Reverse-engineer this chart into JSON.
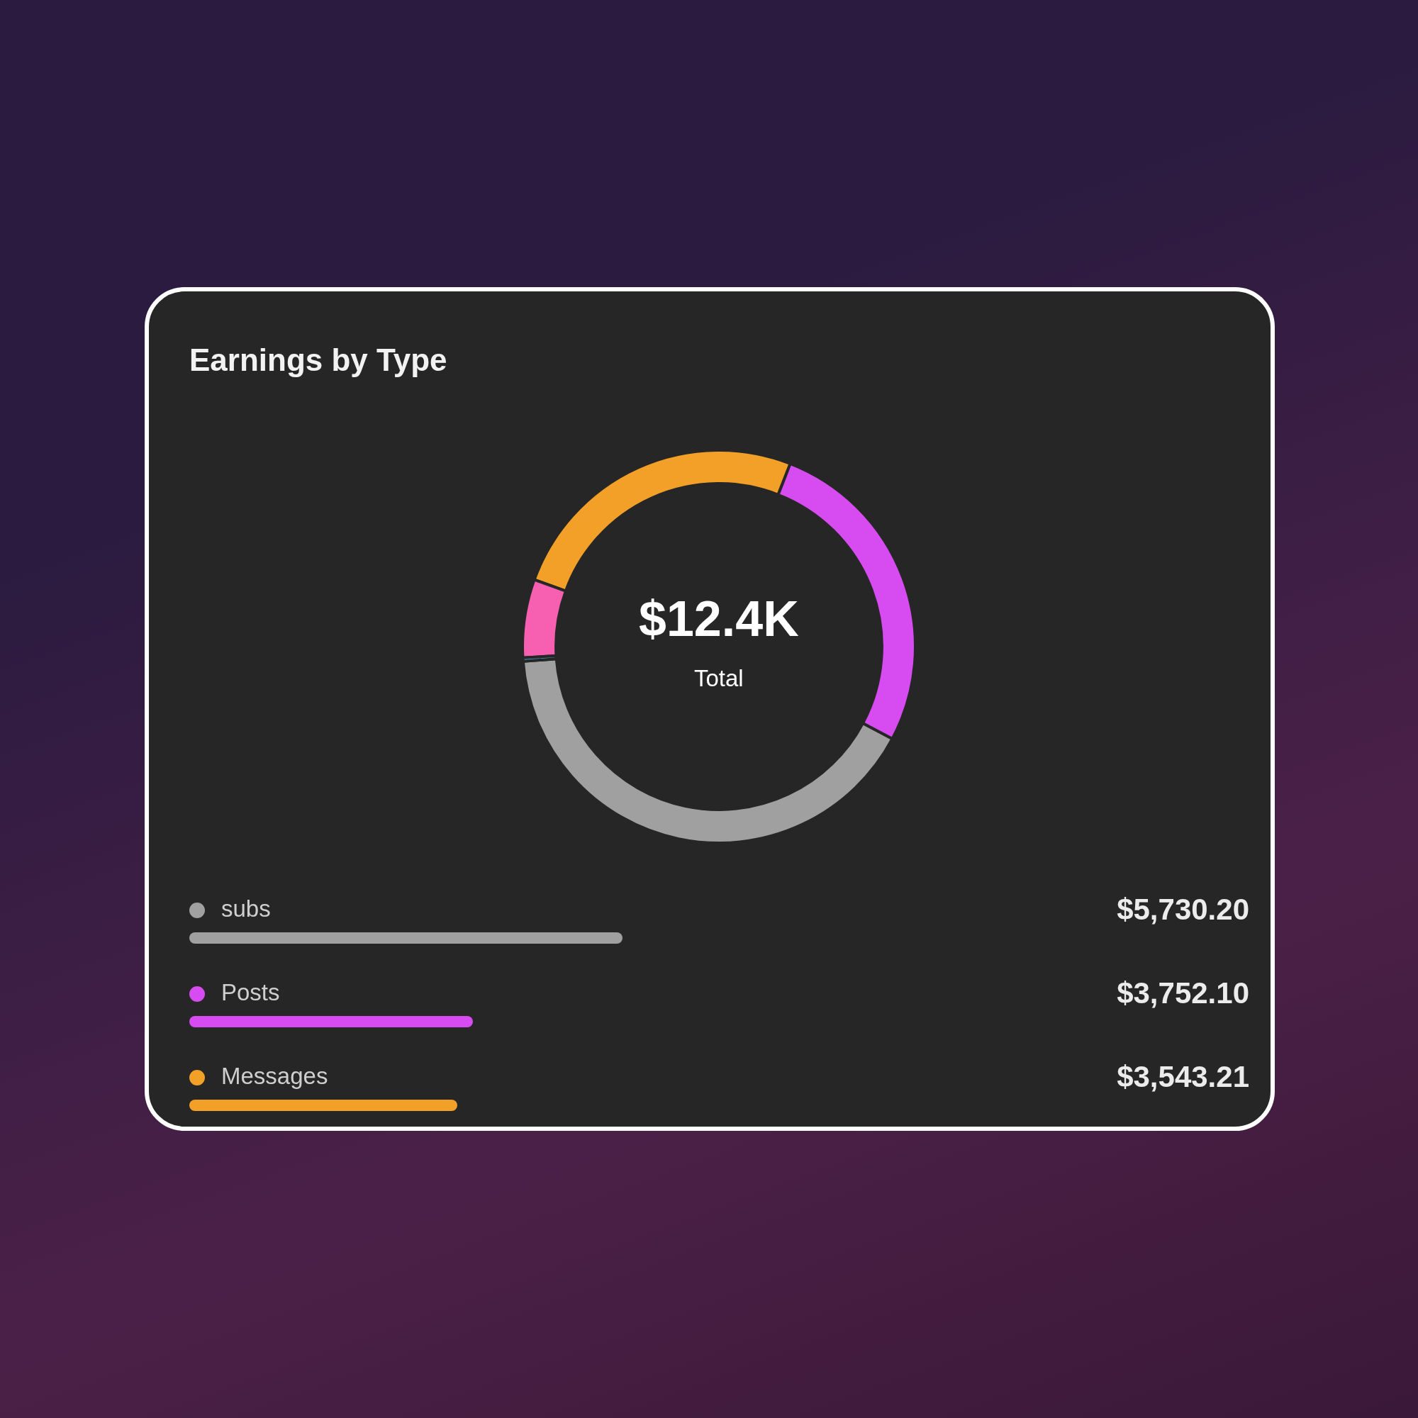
{
  "chart_data": {
    "type": "donut",
    "title": "Earnings by Type",
    "annotations": [
      "$12.4K",
      "Total"
    ],
    "categories": [
      "subs",
      "Posts",
      "Messages",
      null,
      null
    ],
    "values": [
      5730.2,
      3752.1,
      3543.21,
      900,
      40
    ],
    "colors": [
      "#a0a0a0",
      "#d64cf0",
      "#f2a028",
      "#f75fb0",
      "#4aa8e0"
    ],
    "value_labels": [
      "$5,730.20",
      "$3,752.10",
      "$3,543.21",
      null,
      null
    ],
    "legend": "bottom"
  }
}
